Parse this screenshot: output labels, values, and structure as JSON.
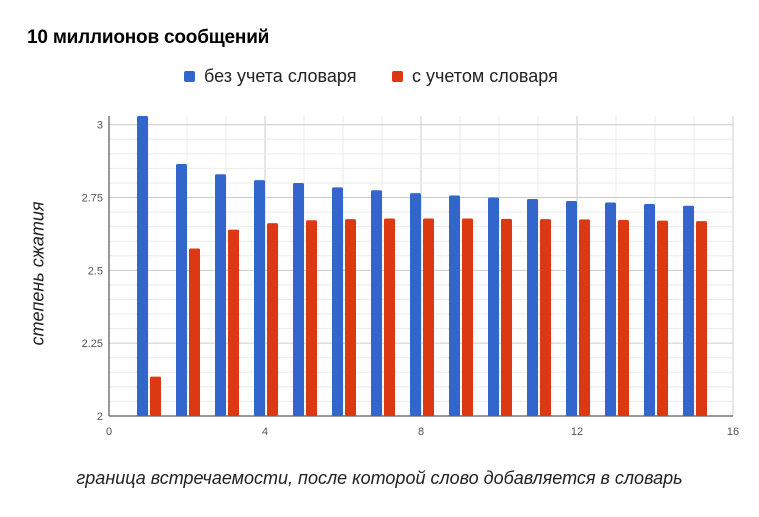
{
  "chart_data": {
    "type": "bar",
    "title": "10 миллионов сообщений",
    "xlabel": "граница встречаемости, после которой слово добавляется в словарь",
    "ylabel": "степень сжатия",
    "x": [
      1,
      2,
      3,
      4,
      5,
      6,
      7,
      8,
      9,
      10,
      11,
      12,
      13,
      14,
      15
    ],
    "xlim": [
      0,
      16
    ],
    "ylim": [
      2,
      3.05
    ],
    "xticks": [
      0,
      4,
      8,
      12,
      16
    ],
    "yticks": [
      2,
      2.25,
      2.5,
      2.75,
      3
    ],
    "ytick_labels": [
      "2",
      "2.25",
      "2.5",
      "2.75",
      "3"
    ],
    "grid": true,
    "legend_position": "top",
    "series": [
      {
        "name": "без учета словаря",
        "color": "#3366cc",
        "values": [
          3.03,
          2.865,
          2.83,
          2.81,
          2.8,
          2.785,
          2.775,
          2.765,
          2.757,
          2.75,
          2.745,
          2.738,
          2.733,
          2.728,
          2.722
        ]
      },
      {
        "name": "с учетом словаря",
        "color": "#dc3912",
        "values": [
          2.135,
          2.575,
          2.64,
          2.662,
          2.672,
          2.676,
          2.678,
          2.678,
          2.678,
          2.677,
          2.676,
          2.675,
          2.673,
          2.671,
          2.669
        ]
      }
    ]
  }
}
